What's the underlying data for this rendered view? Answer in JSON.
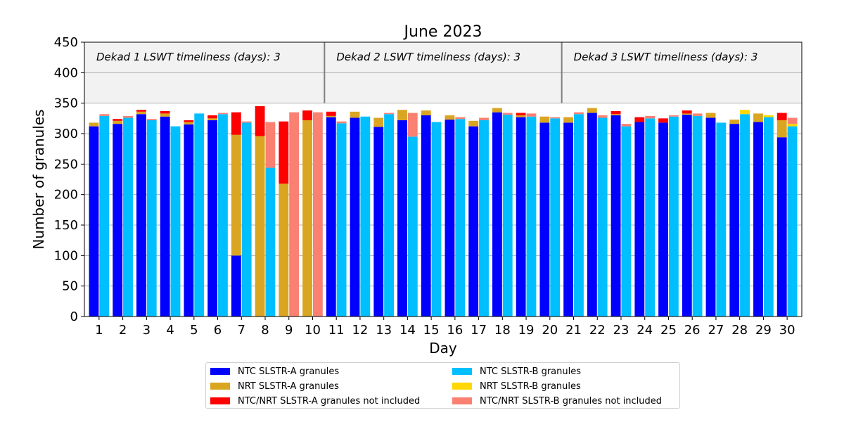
{
  "chart_data": {
    "type": "bar",
    "title": "June 2023",
    "xlabel": "Day",
    "ylabel": "Number of granules",
    "ylim": [
      0,
      450
    ],
    "yticks": [
      0,
      50,
      100,
      150,
      200,
      250,
      300,
      350,
      400,
      450
    ],
    "categories": [
      "1",
      "2",
      "3",
      "4",
      "5",
      "6",
      "7",
      "8",
      "9",
      "10",
      "11",
      "12",
      "13",
      "14",
      "15",
      "16",
      "17",
      "18",
      "19",
      "20",
      "21",
      "22",
      "23",
      "24",
      "25",
      "26",
      "27",
      "28",
      "29",
      "30"
    ],
    "grid": "horizontal",
    "legend_position": "bottom-center",
    "shaded_band": {
      "from": 350,
      "to": 450,
      "color": "#f2f2f2"
    },
    "dekads": [
      {
        "label": "Dekad 1 LSWT timeliness (days): 3",
        "after_day": null
      },
      {
        "label": "Dekad 2 LSWT timeliness (days): 3",
        "after_day": 10
      },
      {
        "label": "Dekad 3 LSWT timeliness (days): 3",
        "after_day": 20
      }
    ],
    "slstr_a": [
      {
        "name": "NTC SLSTR-A granules",
        "color": "#0000ff",
        "values": [
          312,
          316,
          332,
          328,
          315,
          322,
          100,
          0,
          0,
          0,
          327,
          326,
          311,
          322,
          330,
          323,
          312,
          335,
          327,
          318,
          318,
          334,
          330,
          319,
          318,
          331,
          326,
          316,
          319,
          294
        ]
      },
      {
        "name": "NRT SLSTR-A granules",
        "color": "#daa520",
        "values": [
          6,
          5,
          4,
          5,
          4,
          3,
          198,
          296,
          218,
          322,
          2,
          10,
          15,
          17,
          8,
          7,
          9,
          7,
          3,
          10,
          9,
          8,
          2,
          0,
          0,
          2,
          8,
          7,
          14,
          28
        ]
      },
      {
        "name": "NTC/NRT SLSTR-A granules not included",
        "color": "#ff0000",
        "values": [
          0,
          3,
          3,
          4,
          3,
          5,
          37,
          49,
          102,
          16,
          7,
          0,
          0,
          0,
          0,
          0,
          0,
          0,
          4,
          0,
          0,
          0,
          5,
          8,
          7,
          5,
          0,
          0,
          0,
          12
        ]
      }
    ],
    "slstr_b": [
      {
        "name": "NTC SLSTR-B granules",
        "color": "#00bfff",
        "values": [
          329,
          326,
          322,
          312,
          333,
          332,
          318,
          244,
          0,
          0,
          317,
          328,
          332,
          295,
          319,
          324,
          322,
          331,
          328,
          325,
          332,
          326,
          312,
          325,
          328,
          329,
          318,
          332,
          327,
          312
        ]
      },
      {
        "name": "NRT SLSTR-B granules",
        "color": "#ffd700",
        "values": [
          0,
          0,
          0,
          0,
          0,
          0,
          0,
          0,
          0,
          0,
          0,
          0,
          0,
          0,
          0,
          0,
          0,
          0,
          0,
          0,
          0,
          0,
          0,
          0,
          0,
          0,
          0,
          7,
          3,
          4
        ]
      },
      {
        "name": "NTC/NRT SLSTR-B granules not included",
        "color": "#fa8072",
        "values": [
          3,
          3,
          2,
          0,
          0,
          2,
          2,
          75,
          335,
          335,
          3,
          0,
          2,
          39,
          0,
          3,
          4,
          3,
          5,
          2,
          3,
          4,
          4,
          4,
          2,
          4,
          0,
          0,
          0,
          10
        ]
      }
    ]
  },
  "legend": [
    {
      "label": "NTC SLSTR-A granules",
      "color": "#0000ff"
    },
    {
      "label": "NTC SLSTR-B granules",
      "color": "#00bfff"
    },
    {
      "label": "NRT SLSTR-A granules",
      "color": "#daa520"
    },
    {
      "label": "NRT SLSTR-B granules",
      "color": "#ffd700"
    },
    {
      "label": "NTC/NRT SLSTR-A granules not included",
      "color": "#ff0000"
    },
    {
      "label": "NTC/NRT SLSTR-B granules not included",
      "color": "#fa8072"
    }
  ]
}
